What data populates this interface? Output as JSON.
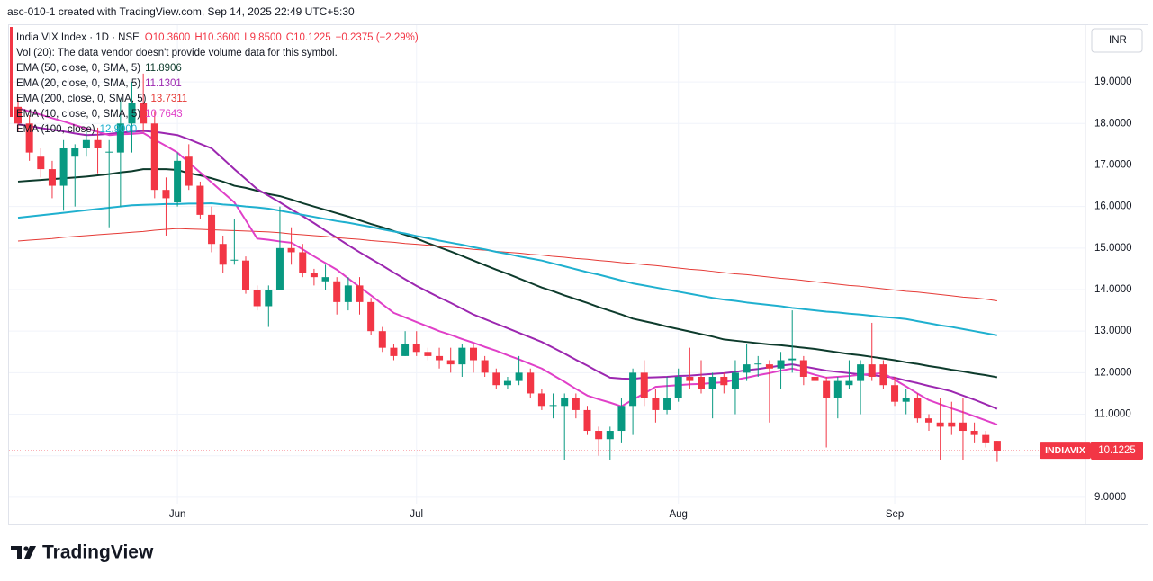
{
  "header": {
    "title": "asc-010-1 created with TradingView.com, Sep 14, 2025 22:49 UTC+5:30"
  },
  "brand": "TradingView",
  "chart_data": {
    "type": "candlestick",
    "legend": {
      "symbol": "India VIX Index · 1D · NSE",
      "ohlc": [
        "O10.3600",
        "H10.3600",
        "L9.8500",
        "C10.1225",
        "−0.2375 (−2.29%)"
      ],
      "volume_note": "Vol (20): The data vendor doesn't provide volume data for this symbol."
    },
    "currency": "INR",
    "price_tag": {
      "name": "INDIAVIX",
      "label": "10.1225"
    },
    "up_color": "#089981",
    "down_color": "#f23645",
    "grid": true,
    "ylim": [
      8.37,
      20.15
    ],
    "yticks": [
      {
        "value": 9,
        "label": "9.0000"
      },
      {
        "value": 10,
        "label": "10.0000"
      },
      {
        "value": 11,
        "label": "11.0000"
      },
      {
        "value": 12,
        "label": "12.0000"
      },
      {
        "value": 13,
        "label": "13.0000"
      },
      {
        "value": 14,
        "label": "14.0000"
      },
      {
        "value": 15,
        "label": "15.0000"
      },
      {
        "value": 16,
        "label": "16.0000"
      },
      {
        "value": 17,
        "label": "17.0000"
      },
      {
        "value": 18,
        "label": "18.0000"
      },
      {
        "value": 19,
        "label": "19.0000"
      }
    ],
    "categories": [
      null,
      null,
      null,
      null,
      null,
      null,
      null,
      null,
      null,
      null,
      null,
      null,
      null,
      null,
      "Jun",
      null,
      null,
      null,
      null,
      null,
      null,
      null,
      null,
      null,
      null,
      null,
      null,
      null,
      null,
      null,
      null,
      null,
      null,
      null,
      null,
      "Jul",
      null,
      null,
      null,
      null,
      null,
      null,
      null,
      null,
      null,
      null,
      null,
      null,
      null,
      null,
      null,
      null,
      null,
      null,
      null,
      null,
      null,
      null,
      "Aug",
      null,
      null,
      null,
      null,
      null,
      null,
      null,
      null,
      null,
      null,
      null,
      null,
      null,
      null,
      null,
      null,
      null,
      null,
      "Sep",
      null,
      null,
      null,
      null,
      null,
      null,
      null,
      null,
      null
    ],
    "open": [
      18.4,
      18.0,
      17.2,
      16.9,
      16.5,
      17.2,
      17.4,
      17.6,
      17.3,
      17.3,
      18.0,
      18.5,
      18.0,
      16.4,
      16.1,
      17.2,
      16.5,
      15.8,
      15.1,
      14.7,
      14.7,
      14.0,
      13.6,
      14.0,
      15.0,
      14.9,
      14.4,
      14.2,
      14.2,
      13.7,
      14.1,
      13.7,
      13.0,
      12.6,
      12.4,
      12.7,
      12.5,
      12.4,
      12.3,
      12.2,
      12.6,
      12.3,
      12.0,
      11.7,
      11.8,
      12.0,
      11.5,
      11.2,
      11.2,
      11.4,
      11.1,
      10.6,
      10.4,
      10.6,
      11.2,
      12.0,
      11.4,
      11.1,
      11.4,
      11.9,
      11.9,
      11.6,
      11.9,
      11.6,
      12.0,
      12.2,
      12.2,
      12.1,
      12.3,
      12.3,
      11.9,
      11.8,
      11.4,
      11.7,
      11.8,
      12.2,
      12.2,
      11.7,
      11.3,
      11.4,
      10.9,
      10.8,
      10.8,
      10.8,
      10.6,
      10.5,
      10.36
    ],
    "high": [
      18.6,
      18.2,
      17.4,
      17.1,
      17.6,
      17.5,
      17.8,
      17.9,
      17.6,
      18.6,
      19.0,
      19.2,
      18.3,
      16.7,
      17.3,
      17.5,
      16.6,
      16.0,
      15.3,
      15.7,
      14.8,
      14.1,
      14.1,
      16.0,
      15.5,
      15.1,
      14.5,
      14.6,
      14.3,
      14.3,
      14.3,
      13.8,
      13.1,
      12.7,
      13.0,
      13.0,
      12.6,
      12.6,
      12.6,
      12.7,
      12.7,
      12.4,
      12.1,
      11.9,
      12.4,
      12.1,
      11.6,
      11.5,
      11.5,
      11.5,
      11.2,
      10.7,
      10.7,
      11.4,
      12.1,
      12.3,
      11.6,
      11.9,
      12.1,
      12.6,
      12.3,
      12.0,
      12.0,
      12.3,
      12.7,
      12.4,
      12.3,
      12.5,
      13.5,
      12.4,
      12.1,
      11.9,
      11.9,
      12.3,
      12.3,
      13.2,
      12.3,
      11.9,
      11.6,
      11.5,
      11.0,
      11.4,
      11.3,
      11.4,
      10.8,
      10.6,
      10.36
    ],
    "low": [
      17.8,
      17.1,
      16.7,
      16.2,
      15.9,
      16.0,
      17.2,
      16.8,
      15.5,
      16.0,
      17.3,
      17.8,
      16.2,
      15.3,
      16.0,
      16.4,
      15.7,
      14.9,
      14.4,
      14.6,
      13.9,
      13.5,
      13.1,
      14.0,
      14.6,
      14.3,
      14.1,
      14.0,
      13.4,
      13.5,
      13.4,
      12.9,
      12.5,
      12.3,
      12.4,
      12.4,
      12.3,
      12.1,
      12.0,
      11.9,
      12.0,
      11.9,
      11.6,
      11.6,
      11.7,
      11.4,
      11.1,
      10.9,
      9.9,
      10.9,
      10.5,
      10.0,
      9.9,
      10.3,
      10.5,
      11.2,
      10.8,
      11.0,
      11.3,
      11.6,
      11.5,
      10.9,
      11.5,
      11.0,
      11.8,
      11.9,
      10.8,
      11.6,
      12.0,
      11.7,
      10.2,
      10.2,
      10.9,
      11.6,
      11.0,
      11.8,
      11.6,
      11.2,
      11.0,
      10.8,
      10.6,
      9.9,
      10.5,
      9.9,
      10.3,
      10.2,
      9.85
    ],
    "close": [
      18.0,
      17.3,
      16.9,
      16.5,
      17.4,
      17.4,
      17.6,
      17.4,
      17.32,
      18.0,
      18.5,
      18.0,
      16.4,
      16.2,
      17.1,
      16.5,
      15.8,
      15.1,
      14.6,
      14.72,
      14.0,
      13.6,
      14.0,
      15.0,
      14.9,
      14.4,
      14.3,
      14.3,
      13.7,
      14.1,
      13.7,
      13.0,
      12.6,
      12.4,
      12.7,
      12.5,
      12.4,
      12.3,
      12.2,
      12.6,
      12.3,
      12.0,
      11.7,
      11.8,
      12.0,
      11.5,
      11.2,
      11.22,
      11.4,
      11.1,
      10.6,
      10.4,
      10.6,
      11.2,
      12.0,
      11.4,
      11.1,
      11.4,
      11.9,
      11.8,
      11.6,
      11.9,
      11.7,
      12.0,
      12.2,
      12.22,
      12.1,
      12.3,
      12.34,
      11.9,
      11.8,
      11.4,
      11.8,
      11.8,
      12.2,
      11.9,
      11.7,
      11.3,
      11.4,
      10.9,
      10.8,
      10.7,
      10.7,
      10.6,
      10.5,
      10.3,
      10.1225
    ],
    "series": [
      {
        "name": "EMA (50, close, 0, SMA, 5)",
        "legend_value": "11.8906",
        "color": "#0d3b2c",
        "width": 2,
        "values": [
          16.6,
          16.62,
          16.64,
          16.66,
          16.68,
          16.7,
          16.72,
          16.75,
          16.78,
          16.82,
          16.85,
          16.9,
          16.9,
          16.9,
          16.88,
          16.8,
          16.75,
          16.68,
          16.6,
          16.5,
          16.45,
          16.38,
          16.3,
          16.25,
          16.17,
          16.08,
          16.0,
          15.92,
          15.84,
          15.76,
          15.67,
          15.58,
          15.5,
          15.41,
          15.32,
          15.23,
          15.12,
          15.02,
          14.92,
          14.81,
          14.7,
          14.59,
          14.48,
          14.38,
          14.27,
          14.16,
          14.05,
          13.96,
          13.86,
          13.77,
          13.68,
          13.58,
          13.49,
          13.4,
          13.3,
          13.24,
          13.18,
          13.11,
          13.05,
          12.99,
          12.93,
          12.87,
          12.8,
          12.77,
          12.74,
          12.71,
          12.68,
          12.66,
          12.63,
          12.6,
          12.57,
          12.53,
          12.49,
          12.45,
          12.42,
          12.38,
          12.34,
          12.3,
          12.25,
          12.21,
          12.16,
          12.12,
          12.07,
          12.03,
          11.98,
          11.94,
          11.89
        ]
      },
      {
        "name": "EMA (20, close, 0, SMA, 5)",
        "legend_value": "11.1301",
        "color": "#9c27b0",
        "width": 2,
        "values": [
          17.98,
          17.94,
          17.89,
          17.85,
          17.81,
          17.76,
          17.72,
          17.73,
          17.75,
          17.78,
          17.8,
          17.82,
          17.8,
          17.76,
          17.72,
          17.62,
          17.51,
          17.4,
          17.15,
          16.9,
          16.66,
          16.42,
          16.26,
          16.1,
          15.93,
          15.77,
          15.6,
          15.42,
          15.25,
          15.07,
          14.9,
          14.74,
          14.58,
          14.41,
          14.25,
          14.09,
          13.95,
          13.81,
          13.68,
          13.54,
          13.4,
          13.29,
          13.18,
          13.07,
          12.96,
          12.85,
          12.74,
          12.6,
          12.46,
          12.31,
          12.17,
          12.02,
          11.88,
          11.86,
          11.85,
          11.88,
          11.89,
          11.9,
          11.92,
          11.93,
          11.95,
          11.97,
          11.99,
          12.02,
          12.06,
          12.09,
          12.13,
          12.17,
          12.2,
          12.15,
          12.1,
          12.05,
          12.02,
          11.99,
          11.96,
          11.94,
          11.91,
          11.88,
          11.81,
          11.75,
          11.68,
          11.62,
          11.55,
          11.45,
          11.35,
          11.24,
          11.13
        ]
      },
      {
        "name": "EMA (200, close, 0, SMA, 5)",
        "legend_value": "13.7311",
        "color": "#e53935",
        "width": 1,
        "values": [
          15.17,
          15.19,
          15.21,
          15.23,
          15.26,
          15.28,
          15.3,
          15.32,
          15.34,
          15.36,
          15.38,
          15.4,
          15.43,
          15.45,
          15.47,
          15.46,
          15.45,
          15.44,
          15.43,
          15.42,
          15.41,
          15.4,
          15.39,
          15.37,
          15.34,
          15.32,
          15.3,
          15.28,
          15.25,
          15.23,
          15.21,
          15.18,
          15.16,
          15.14,
          15.11,
          15.09,
          15.07,
          15.04,
          15.02,
          15.0,
          14.97,
          14.95,
          14.92,
          14.9,
          14.88,
          14.85,
          14.83,
          14.8,
          14.78,
          14.75,
          14.73,
          14.7,
          14.68,
          14.65,
          14.63,
          14.6,
          14.58,
          14.55,
          14.52,
          14.49,
          14.47,
          14.44,
          14.41,
          14.38,
          14.36,
          14.33,
          14.3,
          14.27,
          14.25,
          14.22,
          14.19,
          14.16,
          14.13,
          14.1,
          14.08,
          14.05,
          14.02,
          13.99,
          13.96,
          13.94,
          13.91,
          13.88,
          13.85,
          13.82,
          13.8,
          13.77,
          13.73
        ]
      },
      {
        "name": "EMA (10, close, 0, SMA, 5)",
        "legend_value": "10.7643",
        "color": "#e040c8",
        "width": 2,
        "values": [
          18.37,
          18.29,
          18.21,
          18.13,
          18.05,
          17.96,
          17.88,
          17.8,
          17.72,
          17.74,
          17.75,
          17.77,
          17.61,
          17.46,
          17.3,
          17.06,
          16.82,
          16.58,
          16.34,
          16.1,
          15.67,
          15.23,
          15.2,
          15.16,
          15.13,
          14.97,
          14.8,
          14.64,
          14.48,
          14.27,
          14.06,
          13.86,
          13.65,
          13.44,
          13.33,
          13.22,
          13.11,
          13.0,
          12.91,
          12.81,
          12.72,
          12.62,
          12.53,
          12.42,
          12.32,
          12.21,
          12.1,
          11.94,
          11.78,
          11.61,
          11.45,
          11.36,
          11.28,
          11.19,
          11.35,
          11.5,
          11.66,
          11.68,
          11.7,
          11.72,
          11.73,
          11.75,
          11.77,
          11.83,
          11.88,
          11.94,
          11.99,
          12.05,
          12.1,
          12.03,
          11.95,
          11.88,
          11.9,
          11.92,
          11.95,
          11.97,
          11.99,
          11.83,
          11.67,
          11.5,
          11.34,
          11.24,
          11.14,
          11.05,
          10.95,
          10.85,
          10.75
        ]
      },
      {
        "name": "EMA (100, close)",
        "legend_value": "12.9000",
        "color": "#1fb0cf",
        "width": 2,
        "values": [
          15.73,
          15.76,
          15.79,
          15.82,
          15.85,
          15.88,
          15.91,
          15.94,
          15.97,
          16.0,
          16.03,
          16.04,
          16.05,
          16.06,
          16.06,
          16.07,
          16.07,
          16.08,
          16.05,
          16.03,
          16.0,
          15.98,
          15.95,
          15.9,
          15.85,
          15.8,
          15.75,
          15.7,
          15.65,
          15.61,
          15.56,
          15.51,
          15.45,
          15.4,
          15.35,
          15.29,
          15.24,
          15.18,
          15.13,
          15.08,
          15.02,
          14.97,
          14.91,
          14.86,
          14.8,
          14.75,
          14.7,
          14.63,
          14.56,
          14.49,
          14.42,
          14.36,
          14.29,
          14.22,
          14.15,
          14.1,
          14.05,
          14.0,
          13.95,
          13.9,
          13.85,
          13.8,
          13.76,
          13.73,
          13.69,
          13.66,
          13.63,
          13.6,
          13.56,
          13.53,
          13.5,
          13.47,
          13.45,
          13.42,
          13.4,
          13.37,
          13.34,
          13.32,
          13.29,
          13.24,
          13.19,
          13.14,
          13.1,
          13.05,
          13.0,
          12.95,
          12.9
        ]
      }
    ]
  }
}
